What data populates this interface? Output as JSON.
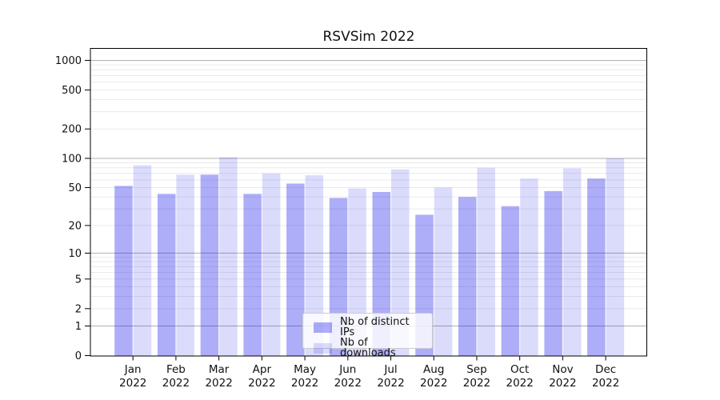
{
  "chart_data": {
    "type": "bar",
    "title": "RSVSim 2022",
    "categories": [
      "Jan",
      "Feb",
      "Mar",
      "Apr",
      "May",
      "Jun",
      "Jul",
      "Aug",
      "Sep",
      "Oct",
      "Nov",
      "Dec"
    ],
    "year_label": "2022",
    "series": [
      {
        "name": "Nb of distinct IPs",
        "color": "rgba(15,15,235,0.34)",
        "values": [
          52,
          43,
          68,
          43,
          55,
          39,
          45,
          26,
          40,
          32,
          46,
          62
        ]
      },
      {
        "name": "Nb of downloads",
        "color": "rgba(15,15,235,0.15)",
        "values": [
          85,
          68,
          103,
          70,
          67,
          49,
          77,
          50,
          80,
          62,
          79,
          100
        ]
      }
    ],
    "y_scale": "log1p",
    "y_ticks": [
      1000,
      500,
      200,
      100,
      50,
      20,
      10,
      5,
      2,
      1,
      0
    ],
    "ylim": [
      0,
      1325
    ],
    "grid": {
      "major_color": "#b0b0b0",
      "minor_color": "#eaeaea",
      "on": true
    },
    "legend_position": "lower center",
    "axis_color": "#000000"
  }
}
